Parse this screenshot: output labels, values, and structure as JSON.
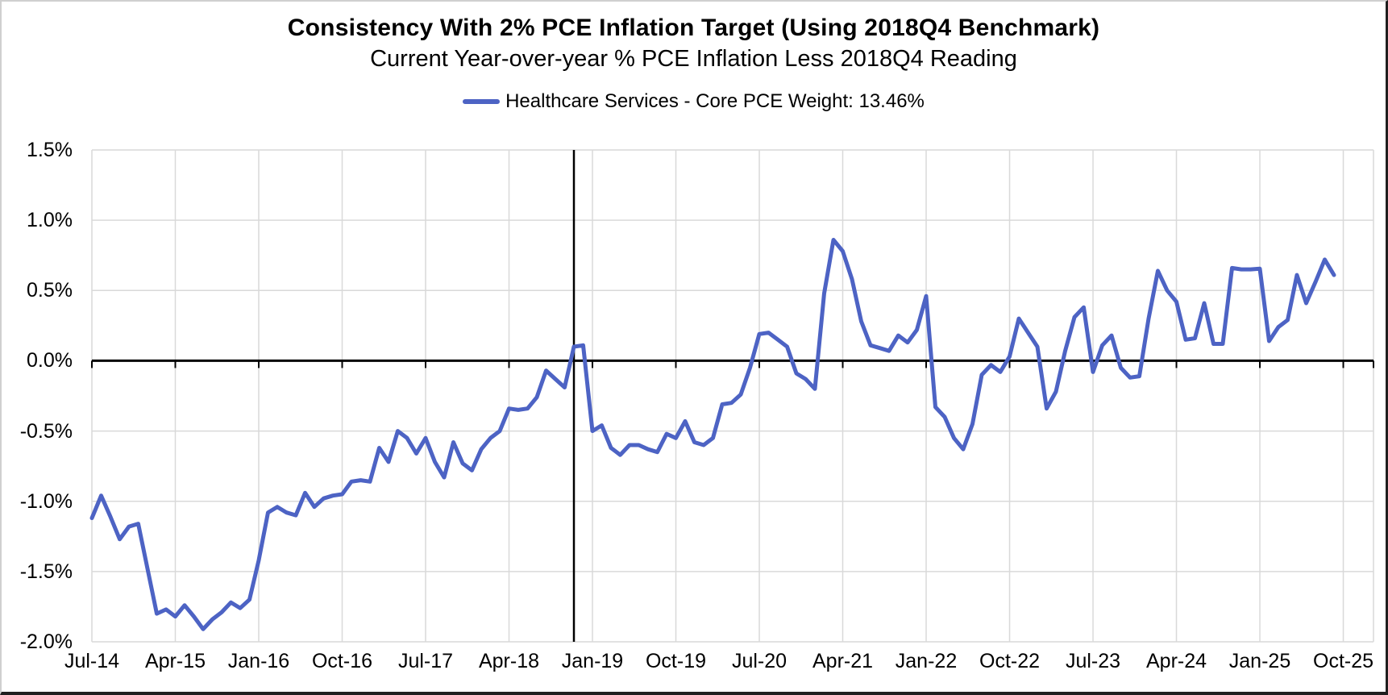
{
  "chart": {
    "title": "Consistency With 2% PCE Inflation Target (Using 2018Q4 Benchmark)",
    "subtitle": "Current Year-over-year % PCE Inflation Less 2018Q4 Reading",
    "legend_label": "Healthcare Services - Core PCE Weight: 13.46%"
  },
  "colors": {
    "line": "#4D63C4",
    "gridline": "#D9D9D9",
    "axis": "#000000",
    "benchmark_line": "#000000",
    "text": "#000000",
    "background": "#FFFFFF"
  },
  "chart_data": {
    "type": "line",
    "title": "Consistency With 2% PCE Inflation Target (Using 2018Q4 Benchmark)",
    "subtitle": "Current Year-over-year % PCE Inflation Less 2018Q4 Reading",
    "series_name": "Healthcare Services - Core PCE Weight: 13.46%",
    "legend_position": "top",
    "grid": true,
    "ylabel": "",
    "xlabel": "",
    "y_unit": "%",
    "ylim": [
      -2.0,
      1.5
    ],
    "y_tick_step": 0.5,
    "y_axis_tick_labels": [
      "1.5%",
      "1.0%",
      "0.5%",
      "0.0%",
      "-0.5%",
      "-1.0%",
      "-1.5%",
      "-2.0%"
    ],
    "x_axis_tick_labels": [
      "Jul-14",
      "Apr-15",
      "Jan-16",
      "Oct-16",
      "Jul-17",
      "Apr-18",
      "Jan-19",
      "Oct-19",
      "Jul-20",
      "Apr-21",
      "Jan-22",
      "Oct-22",
      "Jul-23",
      "Apr-24",
      "Jan-25",
      "Oct-25"
    ],
    "x_tick_interval_months": 9,
    "benchmark_month": "Nov-18",
    "zero_axis": true,
    "x": [
      "Jul-14",
      "Aug-14",
      "Sep-14",
      "Oct-14",
      "Nov-14",
      "Dec-14",
      "Jan-15",
      "Feb-15",
      "Mar-15",
      "Apr-15",
      "May-15",
      "Jun-15",
      "Jul-15",
      "Aug-15",
      "Sep-15",
      "Oct-15",
      "Nov-15",
      "Dec-15",
      "Jan-16",
      "Feb-16",
      "Mar-16",
      "Apr-16",
      "May-16",
      "Jun-16",
      "Jul-16",
      "Aug-16",
      "Sep-16",
      "Oct-16",
      "Nov-16",
      "Dec-16",
      "Jan-17",
      "Feb-17",
      "Mar-17",
      "Apr-17",
      "May-17",
      "Jun-17",
      "Jul-17",
      "Aug-17",
      "Sep-17",
      "Oct-17",
      "Nov-17",
      "Dec-17",
      "Jan-18",
      "Feb-18",
      "Mar-18",
      "Apr-18",
      "May-18",
      "Jun-18",
      "Jul-18",
      "Aug-18",
      "Sep-18",
      "Oct-18",
      "Nov-18",
      "Dec-18",
      "Jan-19",
      "Feb-19",
      "Mar-19",
      "Apr-19",
      "May-19",
      "Jun-19",
      "Jul-19",
      "Aug-19",
      "Sep-19",
      "Oct-19",
      "Nov-19",
      "Dec-19",
      "Jan-20",
      "Feb-20",
      "Mar-20",
      "Apr-20",
      "May-20",
      "Jun-20",
      "Jul-20",
      "Aug-20",
      "Sep-20",
      "Oct-20",
      "Nov-20",
      "Dec-20",
      "Jan-21",
      "Feb-21",
      "Mar-21",
      "Apr-21",
      "May-21",
      "Jun-21",
      "Jul-21",
      "Aug-21",
      "Sep-21",
      "Oct-21",
      "Nov-21",
      "Dec-21",
      "Jan-22",
      "Feb-22",
      "Mar-22",
      "Apr-22",
      "May-22",
      "Jun-22",
      "Jul-22",
      "Aug-22",
      "Sep-22",
      "Oct-22",
      "Nov-22",
      "Dec-22",
      "Jan-23",
      "Feb-23",
      "Mar-23",
      "Apr-23",
      "May-23",
      "Jun-23",
      "Jul-23",
      "Aug-23",
      "Sep-23",
      "Oct-23",
      "Nov-23",
      "Dec-23",
      "Jan-24",
      "Feb-24",
      "Mar-24",
      "Apr-24",
      "May-24",
      "Jun-24",
      "Jul-24",
      "Aug-24",
      "Sep-24",
      "Oct-24",
      "Nov-24",
      "Dec-24",
      "Jan-25",
      "Feb-25",
      "Mar-25",
      "Apr-25",
      "May-25",
      "Jun-25",
      "Jul-25",
      "Aug-25",
      "Sep-25"
    ],
    "values": [
      -1.12,
      -0.96,
      -1.11,
      -1.27,
      -1.18,
      -1.16,
      -1.48,
      -1.8,
      -1.77,
      -1.82,
      -1.74,
      -1.82,
      -1.91,
      -1.84,
      -1.79,
      -1.72,
      -1.76,
      -1.7,
      -1.42,
      -1.08,
      -1.04,
      -1.08,
      -1.1,
      -0.94,
      -1.04,
      -0.98,
      -0.96,
      -0.95,
      -0.86,
      -0.85,
      -0.86,
      -0.62,
      -0.72,
      -0.5,
      -0.55,
      -0.66,
      -0.55,
      -0.72,
      -0.83,
      -0.58,
      -0.73,
      -0.78,
      -0.63,
      -0.55,
      -0.5,
      -0.34,
      -0.35,
      -0.34,
      -0.26,
      -0.07,
      -0.13,
      -0.19,
      0.1,
      0.11,
      -0.5,
      -0.46,
      -0.62,
      -0.67,
      -0.6,
      -0.6,
      -0.63,
      -0.65,
      -0.52,
      -0.55,
      -0.43,
      -0.58,
      -0.6,
      -0.55,
      -0.31,
      -0.3,
      -0.24,
      -0.05,
      0.19,
      0.2,
      0.15,
      0.1,
      -0.09,
      -0.13,
      -0.2,
      0.48,
      0.86,
      0.78,
      0.58,
      0.28,
      0.11,
      0.09,
      0.07,
      0.18,
      0.13,
      0.22,
      0.46,
      -0.33,
      -0.4,
      -0.55,
      -0.63,
      -0.45,
      -0.1,
      -0.03,
      -0.08,
      0.03,
      0.3,
      0.2,
      0.1,
      -0.34,
      -0.22,
      0.07,
      0.31,
      0.38,
      -0.08,
      0.11,
      0.18,
      -0.05,
      -0.12,
      -0.11,
      0.3,
      0.64,
      0.5,
      0.42,
      0.15,
      0.16,
      0.41,
      0.12,
      0.12,
      0.66,
      0.65,
      0.65,
      0.655,
      0.14,
      0.24,
      0.29,
      0.61,
      0.41,
      0.56,
      0.72,
      0.61
    ]
  }
}
